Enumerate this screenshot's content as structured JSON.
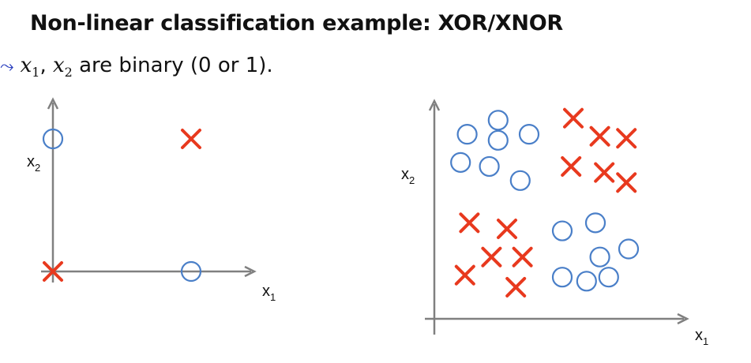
{
  "title": "Non-linear classification example: XOR/XNOR",
  "subtitle": {
    "var1": "x",
    "sub1": "1",
    "sep": ", ",
    "var2": "x",
    "sub2": "2",
    "text": " are binary (0 or 1)."
  },
  "colors": {
    "x_marker": "#e8391e",
    "o_marker": "#4a7fc8",
    "axis": "#808080"
  },
  "chart_data": [
    {
      "type": "scatter",
      "xlabel": "x",
      "xlabel_sub": "1",
      "ylabel": "x",
      "ylabel_sub": "2",
      "xlim": [
        0,
        1
      ],
      "ylim": [
        0,
        1
      ],
      "grid": false,
      "series": [
        {
          "marker": "x",
          "points": [
            [
              0,
              0
            ],
            [
              1,
              1
            ]
          ]
        },
        {
          "marker": "o",
          "points": [
            [
              0,
              1
            ],
            [
              1,
              0
            ]
          ]
        }
      ]
    },
    {
      "type": "scatter",
      "xlabel": "x",
      "xlabel_sub": "1",
      "ylabel": "x",
      "ylabel_sub": "2",
      "xlim": [
        0,
        10
      ],
      "ylim": [
        0,
        10
      ],
      "grid": false,
      "series": [
        {
          "marker": "x",
          "points": [
            [
              6.0,
              9.5
            ],
            [
              7.2,
              8.6
            ],
            [
              8.4,
              8.5
            ],
            [
              5.9,
              7.1
            ],
            [
              7.4,
              6.8
            ],
            [
              8.4,
              6.3
            ],
            [
              1.3,
              4.3
            ],
            [
              3.0,
              4.0
            ],
            [
              2.3,
              2.6
            ],
            [
              3.7,
              2.6
            ],
            [
              1.1,
              1.7
            ],
            [
              3.4,
              1.1
            ]
          ]
        },
        {
          "marker": "o",
          "points": [
            [
              2.6,
              9.4
            ],
            [
              1.2,
              8.7
            ],
            [
              2.6,
              8.4
            ],
            [
              4.0,
              8.7
            ],
            [
              0.9,
              7.3
            ],
            [
              2.2,
              7.1
            ],
            [
              3.6,
              6.4
            ],
            [
              5.5,
              3.9
            ],
            [
              7.0,
              4.3
            ],
            [
              7.2,
              2.6
            ],
            [
              8.5,
              3.0
            ],
            [
              5.5,
              1.6
            ],
            [
              6.6,
              1.4
            ],
            [
              7.6,
              1.6
            ]
          ]
        }
      ]
    }
  ]
}
